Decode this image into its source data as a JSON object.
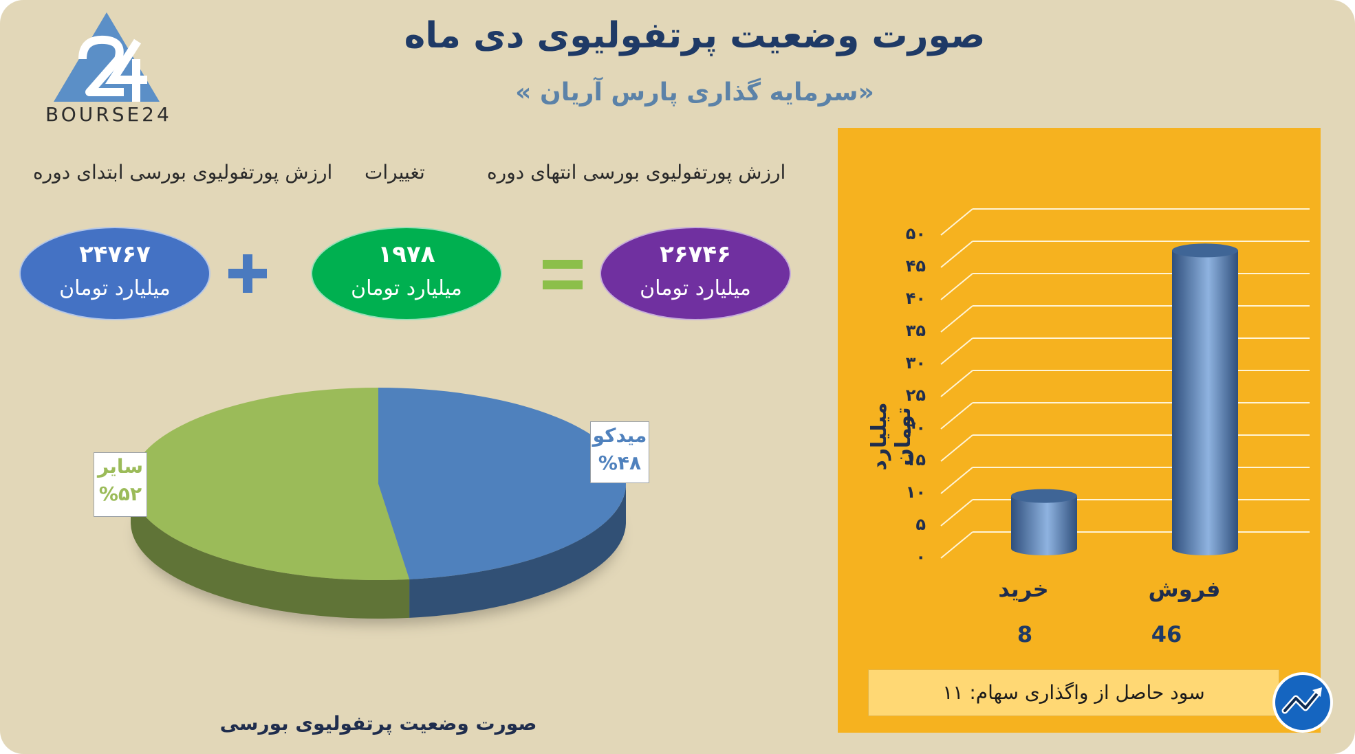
{
  "header": {
    "title": "صورت وضعیت پرتفولیوی دی ماه",
    "subtitle": "«سرمایه گذاری پارس آریان »",
    "logo_text": "BOURSE24"
  },
  "summary": {
    "end_label": "ارزش پورتفولیوی بورسی انتهای دوره",
    "change_label": "تغییرات",
    "start_label": "ارزش پورتفولیوی بورسی ابتدای دوره",
    "end_value": "۲۶۷۴۶",
    "change_value": "۱۹۷۸",
    "start_value": "۲۴۷۶۷",
    "unit": "میلیارد تومان",
    "colors": {
      "end": "#7030a0",
      "change": "#00b050",
      "start": "#4472c4"
    }
  },
  "chart_data": [
    {
      "type": "pie",
      "title": "صورت وضعیت پرتفولیوی بورسی",
      "labels": [
        "میدکو",
        "سایر"
      ],
      "values": [
        48,
        52
      ],
      "value_labels": [
        "%۴۸",
        "%۵۲"
      ],
      "colors": [
        "#4f81bd",
        "#9bbb59"
      ]
    },
    {
      "type": "bar",
      "categories": [
        "فروش",
        "خرید"
      ],
      "values": [
        46,
        8
      ],
      "value_labels": [
        "46",
        "8"
      ],
      "ylabel": "میلیارد تومان",
      "ylim": [
        0,
        50
      ],
      "yticks": [
        "۰",
        "۵",
        "۱۰",
        "۱۵",
        "۲۰",
        "۲۵",
        "۳۰",
        "۳۵",
        "۴۰",
        "۴۵",
        "۵۰"
      ],
      "grid": true,
      "bar_color": "#4f81bd",
      "background": "#f6b21f"
    }
  ],
  "footer": {
    "profit_text": "سود حاصل از واگذاری سهام: ۱۱"
  }
}
